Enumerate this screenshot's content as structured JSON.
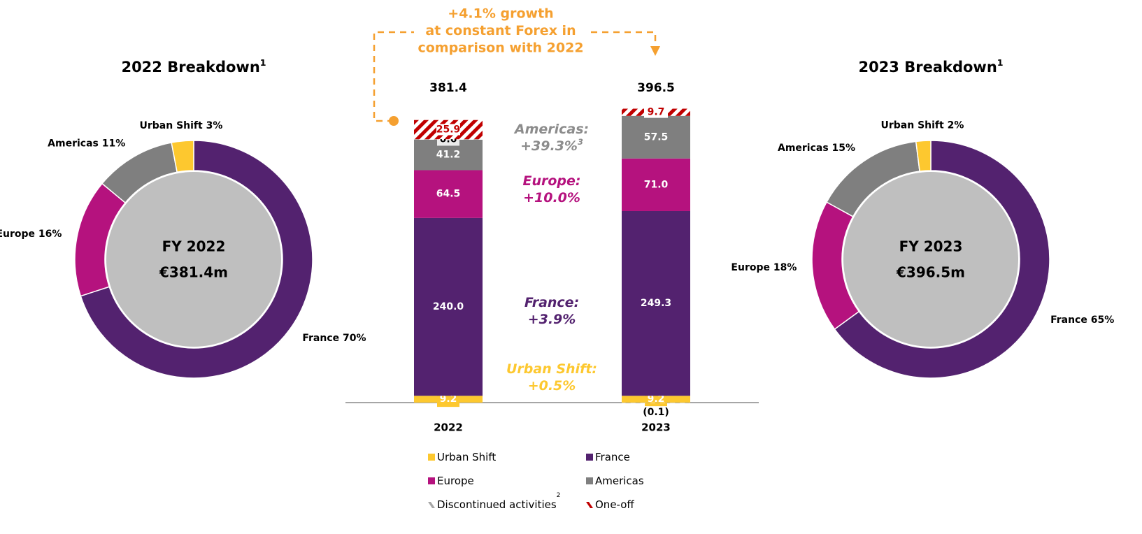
{
  "chart_data": [
    {
      "type": "pie",
      "title": "2022 Breakdown",
      "title_note": "1",
      "center_label": [
        "FY 2022",
        "€381.4m"
      ],
      "values": [
        70,
        16,
        11,
        3
      ],
      "value_labels": [
        "France 70%",
        "Europe 16%",
        "Americas 11%",
        "Urban Shift 3%"
      ],
      "colors": [
        "#53226f",
        "#b5127e",
        "#7f7f7f",
        "#fdc82f"
      ],
      "center_color": "#bfbfbf"
    },
    {
      "type": "stacked_bar",
      "categories": [
        "2022",
        "2023"
      ],
      "totals": [
        "381.4",
        "396.5"
      ],
      "series": [
        {
          "name": "Urban Shift",
          "color": "#fdc82f",
          "values": [
            9.2,
            9.2
          ],
          "value_labels": [
            "9.2",
            "9.2"
          ]
        },
        {
          "name": "France",
          "color": "#53226f",
          "values": [
            240.0,
            249.3
          ],
          "value_labels": [
            "240.0",
            "249.3"
          ]
        },
        {
          "name": "Europe",
          "color": "#b5127e",
          "values": [
            64.5,
            71.0
          ],
          "value_labels": [
            "64.5",
            "71.0"
          ]
        },
        {
          "name": "Americas",
          "color": "#7f7f7f",
          "values": [
            41.2,
            57.5
          ],
          "value_labels": [
            "41.2",
            "57.5"
          ]
        },
        {
          "name": "Discontinued activities",
          "note": "2",
          "color": "#a6a6a6",
          "pattern": "stripes",
          "values": [
            0.6,
            -0.1
          ],
          "value_labels": [
            "0.6",
            "(0.1)"
          ]
        },
        {
          "name": "One-off",
          "color": "#c00000",
          "pattern": "stripes",
          "values": [
            25.9,
            9.7
          ],
          "value_labels": [
            "25.9",
            "9.7"
          ]
        }
      ],
      "growth_note": [
        "+4.1% growth",
        "at constant Forex in",
        "comparison with 2022"
      ],
      "annotations": [
        {
          "text": [
            "Americas:",
            "+39.3%"
          ],
          "note": "3",
          "color": "#8c8c8c"
        },
        {
          "text": [
            "Europe:",
            "+10.0%"
          ],
          "color": "#b5127e"
        },
        {
          "text": [
            "France:",
            "+3.9%"
          ],
          "color": "#53226f"
        },
        {
          "text": [
            "Urban Shift:",
            "+0.5%"
          ],
          "color": "#fdc82f"
        }
      ]
    },
    {
      "type": "pie",
      "title": "2023 Breakdown",
      "title_note": "1",
      "center_label": [
        "FY 2023",
        "€396.5m"
      ],
      "values": [
        65,
        18,
        15,
        2
      ],
      "value_labels": [
        "France 65%",
        "Europe 18%",
        "Americas 15%",
        "Urban Shift 2%"
      ],
      "colors": [
        "#53226f",
        "#b5127e",
        "#7f7f7f",
        "#fdc82f"
      ],
      "center_color": "#bfbfbf"
    }
  ]
}
